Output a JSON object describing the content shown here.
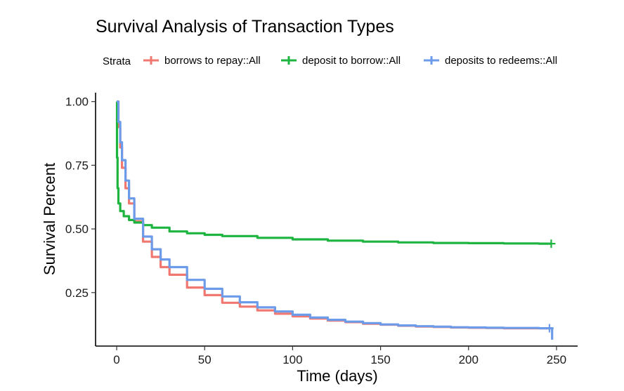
{
  "chart_data": {
    "type": "line",
    "title": "Survival Analysis of Transaction Types",
    "xlabel": "Time (days)",
    "ylabel": "Survival Percent",
    "xlim": [
      -12,
      262
    ],
    "ylim": [
      0.04,
      1.035
    ],
    "x_ticks": [
      0,
      50,
      100,
      150,
      200,
      250
    ],
    "y_ticks": [
      0.25,
      0.5,
      0.75,
      1.0
    ],
    "x_tick_labels": [
      "0",
      "50",
      "100",
      "150",
      "200",
      "250"
    ],
    "y_tick_labels": [
      "0.25",
      "0.50",
      "0.75",
      "1.00"
    ],
    "grid": false,
    "legend": {
      "position": "top",
      "title": "Strata",
      "entries": [
        "borrows to repay::All",
        "deposit to borrow::All",
        "deposits to redeems::All"
      ]
    },
    "series": [
      {
        "name": "borrows to repay::All",
        "color": "#F07870",
        "x": [
          0,
          1,
          2,
          3,
          5,
          7,
          10,
          15,
          20,
          25,
          30,
          40,
          50,
          60,
          70,
          80,
          90,
          100,
          110,
          120,
          130,
          140,
          150,
          160,
          170,
          180,
          190,
          200,
          210,
          220,
          230,
          240,
          247
        ],
        "y": [
          1.0,
          0.9,
          0.82,
          0.74,
          0.66,
          0.6,
          0.53,
          0.45,
          0.39,
          0.35,
          0.32,
          0.27,
          0.24,
          0.21,
          0.195,
          0.18,
          0.167,
          0.157,
          0.148,
          0.14,
          0.134,
          0.128,
          0.124,
          0.12,
          0.117,
          0.115,
          0.113,
          0.112,
          0.111,
          0.11,
          0.11,
          0.11,
          0.11
        ],
        "censor_marks": []
      },
      {
        "name": "deposit to borrow::All",
        "color": "#1DB440",
        "x": [
          0,
          0.2,
          0.5,
          1,
          2,
          4,
          7,
          10,
          15,
          20,
          30,
          40,
          50,
          60,
          80,
          100,
          120,
          140,
          160,
          180,
          200,
          220,
          240,
          247
        ],
        "y": [
          1.0,
          0.78,
          0.66,
          0.6,
          0.57,
          0.55,
          0.535,
          0.525,
          0.515,
          0.505,
          0.49,
          0.483,
          0.477,
          0.472,
          0.465,
          0.459,
          0.454,
          0.45,
          0.447,
          0.445,
          0.444,
          0.443,
          0.442,
          0.442
        ],
        "censor_marks": [
          247
        ]
      },
      {
        "name": "deposits to redeems::All",
        "color": "#6C9BEA",
        "x": [
          0,
          1,
          2,
          3,
          5,
          7,
          10,
          15,
          20,
          25,
          30,
          40,
          50,
          60,
          70,
          80,
          90,
          100,
          110,
          120,
          130,
          140,
          150,
          160,
          170,
          180,
          190,
          200,
          210,
          220,
          230,
          240,
          247,
          247.5
        ],
        "y": [
          1.0,
          0.92,
          0.84,
          0.77,
          0.69,
          0.62,
          0.54,
          0.47,
          0.42,
          0.38,
          0.35,
          0.3,
          0.265,
          0.235,
          0.212,
          0.192,
          0.176,
          0.163,
          0.152,
          0.143,
          0.136,
          0.13,
          0.125,
          0.121,
          0.118,
          0.116,
          0.114,
          0.113,
          0.112,
          0.111,
          0.111,
          0.11,
          0.11,
          0.065
        ],
        "censor_marks": [
          246
        ]
      }
    ]
  }
}
